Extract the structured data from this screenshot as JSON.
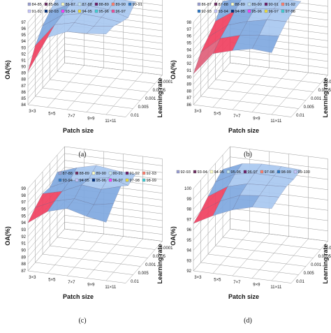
{
  "chart_data": [
    {
      "type": "surface3d",
      "caption": "(a)",
      "xlabel": "Patch size",
      "ylabel": "OA(%)",
      "zlabel": "Learning rate",
      "x_ticks": [
        "3×3",
        "5×5",
        "7×7",
        "9×9",
        "11×11"
      ],
      "z_ticks": [
        "0.0001",
        "0.0005",
        "0.001",
        "0.005",
        "0.01"
      ],
      "y_ticks": [
        "84",
        "85",
        "86",
        "87",
        "88",
        "89",
        "90",
        "91",
        "92",
        "93",
        "94",
        "95",
        "96",
        "97"
      ],
      "ylim": [
        84,
        97
      ],
      "legend": [
        "84-85",
        "85-86",
        "86-87",
        "87-88",
        "88-89",
        "89-90",
        "90-91",
        "91-92",
        "92-93",
        "93-94",
        "94-95",
        "95-96",
        "96-97"
      ],
      "values": [
        [
          95.8,
          96.5,
          96.5,
          96.6,
          96.5
        ],
        [
          94.8,
          96.2,
          96.4,
          96.2,
          95.3
        ],
        [
          93.8,
          95.9,
          96.5,
          96.3,
          95.9
        ],
        [
          92.0,
          95.7,
          96.4,
          96.2,
          96.6
        ],
        [
          89.2,
          95.0,
          96.3,
          96.4,
          96.7
        ]
      ]
    },
    {
      "type": "surface3d",
      "caption": "(b)",
      "xlabel": "Patch size",
      "ylabel": "OA(%)",
      "zlabel": "Learning rate",
      "x_ticks": [
        "3×3",
        "5×5",
        "7×7",
        "9×9",
        "11×11"
      ],
      "z_ticks": [
        "0.0001",
        "0.0005",
        "0.001",
        "0.005",
        "0.01"
      ],
      "y_ticks": [
        "86",
        "87",
        "88",
        "89",
        "90",
        "91",
        "92",
        "93",
        "94",
        "95",
        "96",
        "97",
        "98"
      ],
      "ylim": [
        86,
        98
      ],
      "legend": [
        "86-87",
        "87-88",
        "88-89",
        "89-90",
        "90-91",
        "91-92",
        "92-93",
        "93-94",
        "94-95",
        "95-96",
        "96-97",
        "97-98"
      ],
      "values": [
        [
          96.2,
          97.0,
          97.4,
          97.6,
          97.6
        ],
        [
          94.5,
          96.4,
          97.0,
          97.4,
          97.5
        ],
        [
          93.4,
          95.5,
          96.4,
          97.0,
          97.1
        ],
        [
          92.4,
          94.8,
          95.6,
          96.0,
          96.2
        ],
        [
          90.5,
          93.8,
          94.6,
          95.2,
          95.0
        ]
      ]
    },
    {
      "type": "surface3d",
      "caption": "(c)",
      "xlabel": "Patch size",
      "ylabel": "OA(%)",
      "zlabel": "Learning rate",
      "x_ticks": [
        "3×3",
        "5×5",
        "7×7",
        "9×9",
        "11×11"
      ],
      "z_ticks": [
        "0.0001",
        "0.0005",
        "0.001",
        "0.005",
        "0.01"
      ],
      "y_ticks": [
        "87",
        "88",
        "89",
        "90",
        "91",
        "92",
        "93",
        "94",
        "95",
        "96",
        "97",
        "98",
        "99"
      ],
      "ylim": [
        87,
        99
      ],
      "legend": [
        "87-88",
        "88-89",
        "89-90",
        "90-91",
        "91-92",
        "92-93",
        "93-94",
        "94-95",
        "95-96",
        "96-97",
        "97-98",
        "98-99"
      ],
      "values": [
        [
          96.5,
          97.5,
          98.2,
          97.8,
          97.6
        ],
        [
          95.5,
          96.8,
          97.5,
          98.0,
          97.2
        ],
        [
          95.8,
          96.5,
          97.8,
          97.5,
          98.3
        ],
        [
          95.0,
          96.3,
          97.0,
          96.5,
          97.0
        ],
        [
          94.0,
          96.0,
          96.8,
          96.0,
          95.5
        ]
      ]
    },
    {
      "type": "surface3d",
      "caption": "(d)",
      "xlabel": "Patch size",
      "ylabel": "OA(%)",
      "zlabel": "Learning rate",
      "x_ticks": [
        "3×3",
        "5×5",
        "7×7",
        "9×9",
        "11×11"
      ],
      "z_ticks": [
        "0.0001",
        "0.0005",
        "0.001",
        "0.005",
        "0.01"
      ],
      "y_ticks": [
        "92",
        "93",
        "94",
        "95",
        "96",
        "97",
        "98",
        "99",
        "100"
      ],
      "ylim": [
        92,
        100
      ],
      "legend": [
        "92-93",
        "93-94",
        "94-95",
        "95-96",
        "96-97",
        "97-98",
        "98-99",
        "99-100"
      ],
      "values": [
        [
          98.6,
          99.4,
          99.6,
          99.6,
          99.5
        ],
        [
          98.2,
          99.2,
          99.5,
          99.5,
          99.4
        ],
        [
          97.6,
          98.8,
          99.3,
          99.4,
          99.5
        ],
        [
          97.0,
          98.2,
          99.0,
          99.2,
          99.3
        ],
        [
          96.6,
          97.6,
          98.4,
          98.9,
          99.0
        ]
      ]
    }
  ],
  "palette": [
    "#9aa0d4",
    "#6f2f63",
    "#ffffc8",
    "#c8e8f0",
    "#6b1f6b",
    "#ff8070",
    "#2f7ac8",
    "#c8c8ff",
    "#00307f",
    "#ff3fff",
    "#f0e040",
    "#3fd0d8",
    "#f050a0",
    "#50c0c8"
  ],
  "band_colors": [
    "#2cc0a0",
    "#1aa0b0",
    "#e8c040",
    "#f0a060",
    "#e0607a",
    "#f04060",
    "#7fa8e0",
    "#a8c8f0"
  ]
}
